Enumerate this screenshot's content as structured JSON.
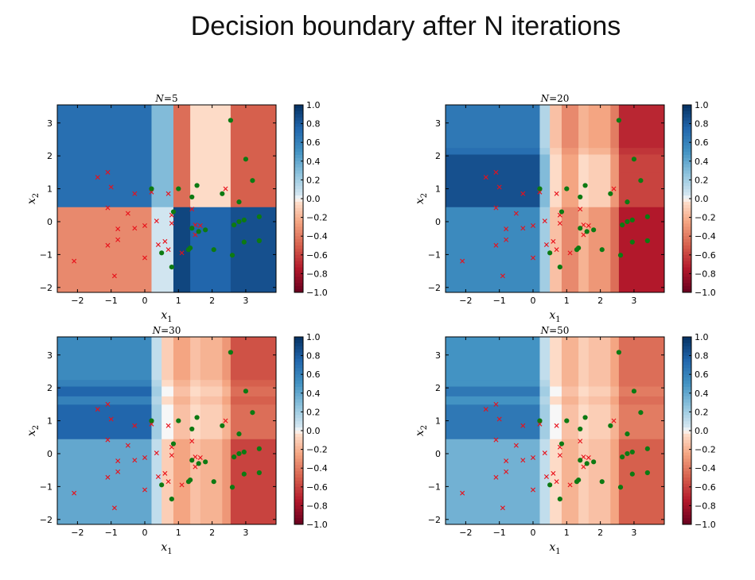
{
  "slide": {
    "title": "Decision boundary after N iterations"
  },
  "chart_data": [
    {
      "type": "heatmap",
      "title": "N=5",
      "title_parts": {
        "var": "N",
        "eq": "=",
        "num": "5"
      },
      "xlabel": "x1",
      "xlabel_parts": {
        "base": "x",
        "sub": "1"
      },
      "ylabel": "x2",
      "ylabel_parts": {
        "base": "x",
        "sub": "2"
      },
      "xlim": [
        -2.6,
        3.9
      ],
      "ylim": [
        -2.15,
        3.55
      ],
      "xticks": [
        -2,
        -1,
        0,
        1,
        2,
        3
      ],
      "yticks": [
        -2,
        -1,
        0,
        1,
        2,
        3
      ],
      "colorbar": {
        "min": -1.0,
        "max": 1.0,
        "ticks": [
          "1.0",
          "0.8",
          "0.6",
          "0.4",
          "0.2",
          "0.0",
          "−0.2",
          "−0.4",
          "−0.6",
          "−0.8",
          "−1.0"
        ],
        "colormap": "RdBu"
      },
      "x_edges": [
        -2.6,
        0.2,
        0.85,
        1.35,
        2.55,
        3.9
      ],
      "y_edges": [
        -2.15,
        0.45,
        3.55
      ],
      "values": [
        [
          -0.35,
          0.05,
          0.9,
          0.75,
          0.85
        ],
        [
          0.7,
          0.3,
          -0.45,
          -0.05,
          -0.5
        ]
      ],
      "points_class_neg": [
        [
          -2.1,
          -1.2
        ],
        [
          -1.4,
          1.35
        ],
        [
          -1.1,
          1.5
        ],
        [
          -1.0,
          1.05
        ],
        [
          -1.1,
          0.42
        ],
        [
          -1.1,
          -0.72
        ],
        [
          -0.9,
          -1.65
        ],
        [
          -0.8,
          -0.22
        ],
        [
          -0.8,
          -0.55
        ],
        [
          -0.5,
          0.25
        ],
        [
          -0.3,
          0.85
        ],
        [
          -0.3,
          -0.2
        ],
        [
          0.0,
          -0.12
        ],
        [
          0.0,
          -1.1
        ],
        [
          0.2,
          0.9
        ],
        [
          0.35,
          0.02
        ],
        [
          0.4,
          -0.7
        ],
        [
          0.6,
          -0.6
        ],
        [
          0.7,
          -0.85
        ],
        [
          0.7,
          0.85
        ],
        [
          0.8,
          -0.05
        ],
        [
          0.8,
          0.2
        ],
        [
          1.1,
          -0.95
        ],
        [
          1.4,
          0.38
        ],
        [
          1.5,
          -0.1
        ],
        [
          1.5,
          -0.4
        ],
        [
          1.65,
          -0.12
        ],
        [
          2.4,
          1.0
        ]
      ],
      "points_class_pos": [
        [
          0.2,
          1.0
        ],
        [
          0.5,
          -0.95
        ],
        [
          0.8,
          -1.38
        ],
        [
          0.85,
          0.3
        ],
        [
          1.0,
          1.0
        ],
        [
          1.3,
          -0.85
        ],
        [
          1.35,
          -0.8
        ],
        [
          1.4,
          -0.2
        ],
        [
          1.4,
          0.75
        ],
        [
          1.55,
          1.1
        ],
        [
          1.6,
          -0.3
        ],
        [
          1.8,
          -0.25
        ],
        [
          2.05,
          -0.85
        ],
        [
          2.3,
          0.85
        ],
        [
          2.55,
          3.08
        ],
        [
          2.6,
          -1.02
        ],
        [
          2.65,
          -0.1
        ],
        [
          2.8,
          0.0
        ],
        [
          2.8,
          0.6
        ],
        [
          2.95,
          -0.62
        ],
        [
          2.95,
          0.05
        ],
        [
          3.0,
          1.9
        ],
        [
          3.2,
          1.25
        ],
        [
          3.4,
          -0.58
        ],
        [
          3.4,
          0.15
        ]
      ]
    },
    {
      "type": "heatmap",
      "title": "N=20",
      "title_parts": {
        "var": "N",
        "eq": "=",
        "num": "20"
      },
      "xlabel": "x1",
      "xlabel_parts": {
        "base": "x",
        "sub": "1"
      },
      "ylabel": "x2",
      "ylabel_parts": {
        "base": "x",
        "sub": "2"
      },
      "xlim": [
        -2.6,
        3.9
      ],
      "ylim": [
        -2.15,
        3.55
      ],
      "xticks": [
        -2,
        -1,
        0,
        1,
        2,
        3
      ],
      "yticks": [
        -2,
        -1,
        0,
        1,
        2,
        3
      ],
      "colorbar": {
        "min": -1.0,
        "max": 1.0,
        "ticks": [
          "1.0",
          "0.8",
          "0.6",
          "0.4",
          "0.2",
          "0.0",
          "−0.2",
          "−0.4",
          "−0.6",
          "−0.8",
          "−1.0"
        ],
        "colormap": "RdBu"
      },
      "x_edges": [
        -2.6,
        0.2,
        0.5,
        0.85,
        1.35,
        1.65,
        2.3,
        2.55,
        3.9
      ],
      "y_edges": [
        -2.15,
        0.45,
        1.5,
        2.05,
        2.25,
        3.55
      ],
      "values": [
        [
          0.55,
          0.2,
          -0.15,
          -0.35,
          -0.2,
          -0.3,
          -0.45,
          -0.75
        ],
        [
          0.85,
          0.3,
          -0.05,
          -0.25,
          -0.05,
          -0.1,
          -0.3,
          -0.6
        ],
        [
          0.85,
          0.3,
          -0.05,
          -0.25,
          -0.05,
          -0.1,
          -0.3,
          -0.6
        ],
        [
          0.7,
          0.2,
          -0.1,
          -0.3,
          -0.15,
          -0.2,
          -0.35,
          -0.65
        ],
        [
          0.65,
          0.15,
          -0.15,
          -0.35,
          -0.2,
          -0.25,
          -0.4,
          -0.7
        ]
      ],
      "points_class_neg": [
        [
          -2.1,
          -1.2
        ],
        [
          -1.4,
          1.35
        ],
        [
          -1.1,
          1.5
        ],
        [
          -1.0,
          1.05
        ],
        [
          -1.1,
          0.42
        ],
        [
          -1.1,
          -0.72
        ],
        [
          -0.9,
          -1.65
        ],
        [
          -0.8,
          -0.22
        ],
        [
          -0.8,
          -0.55
        ],
        [
          -0.5,
          0.25
        ],
        [
          -0.3,
          0.85
        ],
        [
          -0.3,
          -0.2
        ],
        [
          0.0,
          -0.12
        ],
        [
          0.0,
          -1.1
        ],
        [
          0.2,
          0.9
        ],
        [
          0.35,
          0.02
        ],
        [
          0.4,
          -0.7
        ],
        [
          0.6,
          -0.6
        ],
        [
          0.7,
          -0.85
        ],
        [
          0.7,
          0.85
        ],
        [
          0.8,
          -0.05
        ],
        [
          0.8,
          0.2
        ],
        [
          1.1,
          -0.95
        ],
        [
          1.4,
          0.38
        ],
        [
          1.5,
          -0.1
        ],
        [
          1.5,
          -0.4
        ],
        [
          1.65,
          -0.12
        ],
        [
          2.4,
          1.0
        ]
      ],
      "points_class_pos": [
        [
          0.2,
          1.0
        ],
        [
          0.5,
          -0.95
        ],
        [
          0.8,
          -1.38
        ],
        [
          0.85,
          0.3
        ],
        [
          1.0,
          1.0
        ],
        [
          1.3,
          -0.85
        ],
        [
          1.35,
          -0.8
        ],
        [
          1.4,
          -0.2
        ],
        [
          1.4,
          0.75
        ],
        [
          1.55,
          1.1
        ],
        [
          1.6,
          -0.3
        ],
        [
          1.8,
          -0.25
        ],
        [
          2.05,
          -0.85
        ],
        [
          2.3,
          0.85
        ],
        [
          2.55,
          3.08
        ],
        [
          2.6,
          -1.02
        ],
        [
          2.65,
          -0.1
        ],
        [
          2.8,
          0.0
        ],
        [
          2.8,
          0.6
        ],
        [
          2.95,
          -0.62
        ],
        [
          2.95,
          0.05
        ],
        [
          3.0,
          1.9
        ],
        [
          3.2,
          1.25
        ],
        [
          3.4,
          -0.58
        ],
        [
          3.4,
          0.15
        ]
      ]
    },
    {
      "type": "heatmap",
      "title": "N=30",
      "title_parts": {
        "var": "N",
        "eq": "=",
        "num": "30"
      },
      "xlabel": "x1",
      "xlabel_parts": {
        "base": "x",
        "sub": "1"
      },
      "ylabel": "x2",
      "ylabel_parts": {
        "base": "x",
        "sub": "2"
      },
      "xlim": [
        -2.6,
        3.9
      ],
      "ylim": [
        -2.15,
        3.55
      ],
      "xticks": [
        -2,
        -1,
        0,
        1,
        2,
        3
      ],
      "yticks": [
        -2,
        -1,
        0,
        1,
        2,
        3
      ],
      "colorbar": {
        "min": -1.0,
        "max": 1.0,
        "ticks": [
          "1.0",
          "0.8",
          "0.6",
          "0.4",
          "0.2",
          "0.0",
          "−0.2",
          "−0.4",
          "−0.6",
          "−0.8",
          "−1.0"
        ],
        "colormap": "RdBu"
      },
      "x_edges": [
        -2.6,
        0.2,
        0.5,
        0.85,
        1.35,
        1.65,
        2.3,
        2.55,
        3.9
      ],
      "y_edges": [
        -2.15,
        0.45,
        1.5,
        1.75,
        2.05,
        2.25,
        3.55
      ],
      "values": [
        [
          0.4,
          0.1,
          -0.1,
          -0.25,
          -0.15,
          -0.2,
          -0.3,
          -0.6
        ],
        [
          0.75,
          0.2,
          0.0,
          -0.15,
          -0.05,
          -0.1,
          -0.2,
          -0.45
        ],
        [
          0.6,
          0.15,
          -0.05,
          -0.2,
          -0.1,
          -0.15,
          -0.25,
          -0.5
        ],
        [
          0.75,
          0.2,
          0.0,
          -0.15,
          -0.05,
          -0.1,
          -0.2,
          -0.45
        ],
        [
          0.6,
          0.15,
          -0.05,
          -0.2,
          -0.1,
          -0.15,
          -0.25,
          -0.5
        ],
        [
          0.55,
          0.1,
          -0.1,
          -0.25,
          -0.15,
          -0.2,
          -0.3,
          -0.55
        ]
      ],
      "points_class_neg": [
        [
          -2.1,
          -1.2
        ],
        [
          -1.4,
          1.35
        ],
        [
          -1.1,
          1.5
        ],
        [
          -1.0,
          1.05
        ],
        [
          -1.1,
          0.42
        ],
        [
          -1.1,
          -0.72
        ],
        [
          -0.9,
          -1.65
        ],
        [
          -0.8,
          -0.22
        ],
        [
          -0.8,
          -0.55
        ],
        [
          -0.5,
          0.25
        ],
        [
          -0.3,
          0.85
        ],
        [
          -0.3,
          -0.2
        ],
        [
          0.0,
          -0.12
        ],
        [
          0.0,
          -1.1
        ],
        [
          0.2,
          0.9
        ],
        [
          0.35,
          0.02
        ],
        [
          0.4,
          -0.7
        ],
        [
          0.6,
          -0.6
        ],
        [
          0.7,
          -0.85
        ],
        [
          0.7,
          0.85
        ],
        [
          0.8,
          -0.05
        ],
        [
          0.8,
          0.2
        ],
        [
          1.1,
          -0.95
        ],
        [
          1.4,
          0.38
        ],
        [
          1.5,
          -0.1
        ],
        [
          1.5,
          -0.4
        ],
        [
          1.65,
          -0.12
        ],
        [
          2.4,
          1.0
        ]
      ],
      "points_class_pos": [
        [
          0.2,
          1.0
        ],
        [
          0.5,
          -0.95
        ],
        [
          0.8,
          -1.38
        ],
        [
          0.85,
          0.3
        ],
        [
          1.0,
          1.0
        ],
        [
          1.3,
          -0.85
        ],
        [
          1.35,
          -0.8
        ],
        [
          1.4,
          -0.2
        ],
        [
          1.4,
          0.75
        ],
        [
          1.55,
          1.1
        ],
        [
          1.6,
          -0.3
        ],
        [
          1.8,
          -0.25
        ],
        [
          2.05,
          -0.85
        ],
        [
          2.3,
          0.85
        ],
        [
          2.55,
          3.08
        ],
        [
          2.6,
          -1.02
        ],
        [
          2.65,
          -0.1
        ],
        [
          2.8,
          0.0
        ],
        [
          2.8,
          0.6
        ],
        [
          2.95,
          -0.62
        ],
        [
          2.95,
          0.05
        ],
        [
          3.0,
          1.9
        ],
        [
          3.2,
          1.25
        ],
        [
          3.4,
          -0.58
        ],
        [
          3.4,
          0.15
        ]
      ]
    },
    {
      "type": "heatmap",
      "title": "N=50",
      "title_parts": {
        "var": "N",
        "eq": "=",
        "num": "50"
      },
      "xlabel": "x1",
      "xlabel_parts": {
        "base": "x",
        "sub": "1"
      },
      "ylabel": "x2",
      "ylabel_parts": {
        "base": "x",
        "sub": "2"
      },
      "xlim": [
        -2.6,
        3.9
      ],
      "ylim": [
        -2.15,
        3.55
      ],
      "xticks": [
        -2,
        -1,
        0,
        1,
        2,
        3
      ],
      "yticks": [
        -2,
        -1,
        0,
        1,
        2,
        3
      ],
      "colorbar": {
        "min": -1.0,
        "max": 1.0,
        "ticks": [
          "1.0",
          "0.8",
          "0.6",
          "0.4",
          "0.2",
          "0.0",
          "−0.2",
          "−0.4",
          "−0.6",
          "−0.8",
          "−1.0"
        ],
        "colormap": "RdBu"
      },
      "x_edges": [
        -2.6,
        0.2,
        0.5,
        0.85,
        1.35,
        1.65,
        2.3,
        2.55,
        3.9
      ],
      "y_edges": [
        -2.15,
        0.45,
        1.5,
        1.75,
        2.05,
        2.25,
        3.55
      ],
      "values": [
        [
          0.35,
          0.1,
          -0.05,
          -0.2,
          -0.1,
          -0.15,
          -0.25,
          -0.5
        ],
        [
          0.65,
          0.2,
          0.0,
          -0.15,
          -0.05,
          -0.1,
          -0.2,
          -0.4
        ],
        [
          0.5,
          0.15,
          -0.05,
          -0.2,
          -0.1,
          -0.15,
          -0.25,
          -0.45
        ],
        [
          0.65,
          0.2,
          0.0,
          -0.15,
          -0.05,
          -0.1,
          -0.2,
          -0.4
        ],
        [
          0.5,
          0.15,
          -0.05,
          -0.2,
          -0.1,
          -0.15,
          -0.25,
          -0.45
        ],
        [
          0.5,
          0.1,
          -0.05,
          -0.2,
          -0.1,
          -0.15,
          -0.25,
          -0.45
        ]
      ],
      "points_class_neg": [
        [
          -2.1,
          -1.2
        ],
        [
          -1.4,
          1.35
        ],
        [
          -1.1,
          1.5
        ],
        [
          -1.0,
          1.05
        ],
        [
          -1.1,
          0.42
        ],
        [
          -1.1,
          -0.72
        ],
        [
          -0.9,
          -1.65
        ],
        [
          -0.8,
          -0.22
        ],
        [
          -0.8,
          -0.55
        ],
        [
          -0.5,
          0.25
        ],
        [
          -0.3,
          0.85
        ],
        [
          -0.3,
          -0.2
        ],
        [
          0.0,
          -0.12
        ],
        [
          0.0,
          -1.1
        ],
        [
          0.2,
          0.9
        ],
        [
          0.35,
          0.02
        ],
        [
          0.4,
          -0.7
        ],
        [
          0.6,
          -0.6
        ],
        [
          0.7,
          -0.85
        ],
        [
          0.7,
          0.85
        ],
        [
          0.8,
          -0.05
        ],
        [
          0.8,
          0.2
        ],
        [
          1.1,
          -0.95
        ],
        [
          1.4,
          0.38
        ],
        [
          1.5,
          -0.1
        ],
        [
          1.5,
          -0.4
        ],
        [
          1.65,
          -0.12
        ],
        [
          2.4,
          1.0
        ]
      ],
      "points_class_pos": [
        [
          0.2,
          1.0
        ],
        [
          0.5,
          -0.95
        ],
        [
          0.8,
          -1.38
        ],
        [
          0.85,
          0.3
        ],
        [
          1.0,
          1.0
        ],
        [
          1.3,
          -0.85
        ],
        [
          1.35,
          -0.8
        ],
        [
          1.4,
          -0.2
        ],
        [
          1.4,
          0.75
        ],
        [
          1.55,
          1.1
        ],
        [
          1.6,
          -0.3
        ],
        [
          1.8,
          -0.25
        ],
        [
          2.05,
          -0.85
        ],
        [
          2.3,
          0.85
        ],
        [
          2.55,
          3.08
        ],
        [
          2.6,
          -1.02
        ],
        [
          2.65,
          -0.1
        ],
        [
          2.8,
          0.0
        ],
        [
          2.8,
          0.6
        ],
        [
          2.95,
          -0.62
        ],
        [
          2.95,
          0.05
        ],
        [
          3.0,
          1.9
        ],
        [
          3.2,
          1.25
        ],
        [
          3.4,
          -0.58
        ],
        [
          3.4,
          0.15
        ]
      ]
    }
  ]
}
